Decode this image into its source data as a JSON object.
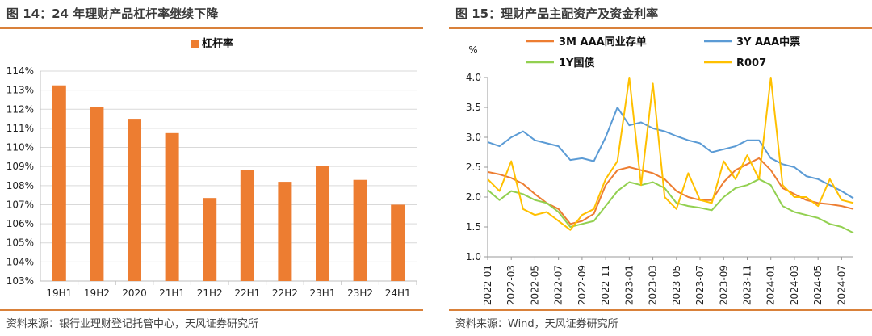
{
  "left": {
    "title": "图 14：24 年理财产品杠杆率继续下降",
    "source": "资料来源：银行业理财登记托管中心，天风证券研究所"
  },
  "right": {
    "title": "图 15：理财产品主配资产及资金利率",
    "source": "资料来源：Wind，天风证券研究所"
  },
  "chart_data": [
    {
      "type": "bar",
      "categories": [
        "19H1",
        "19H2",
        "2020",
        "21H1",
        "21H2",
        "22H1",
        "22H2",
        "23H1",
        "23H2",
        "24H1"
      ],
      "series": [
        {
          "name": "杠杆率",
          "values": [
            113.25,
            112.1,
            111.5,
            110.75,
            107.35,
            108.8,
            108.2,
            109.05,
            108.3,
            107.0
          ],
          "color": "#ed7d31"
        }
      ],
      "ylim": [
        103,
        114
      ],
      "yticks": [
        "103%",
        "104%",
        "105%",
        "106%",
        "107%",
        "108%",
        "109%",
        "110%",
        "111%",
        "112%",
        "113%",
        "114%"
      ],
      "legend_position": "top-center",
      "grid": true
    },
    {
      "type": "line",
      "ylabel": "%",
      "ylim": [
        1.0,
        4.0
      ],
      "yticks": [
        "1.0",
        "1.5",
        "2.0",
        "2.5",
        "3.0",
        "3.5",
        "4.0"
      ],
      "x_ticks": [
        "2022-01",
        "2022-03",
        "2022-05",
        "2022-07",
        "2022-09",
        "2022-11",
        "2023-01",
        "2023-03",
        "2023-05",
        "2023-07",
        "2023-09",
        "2023-11",
        "2024-01",
        "2024-03",
        "2024-05",
        "2024-07"
      ],
      "x_range": [
        "2022-01",
        "2024-08"
      ],
      "legend_position": "top",
      "grid": false,
      "series": [
        {
          "name": "3M AAA同业存单",
          "color": "#ed7d31",
          "x": [
            "2022-01",
            "2022-02",
            "2022-03",
            "2022-04",
            "2022-05",
            "2022-06",
            "2022-07",
            "2022-08",
            "2022-09",
            "2022-10",
            "2022-11",
            "2022-12",
            "2023-01",
            "2023-02",
            "2023-03",
            "2023-04",
            "2023-05",
            "2023-06",
            "2023-07",
            "2023-08",
            "2023-09",
            "2023-10",
            "2023-11",
            "2023-12",
            "2024-01",
            "2024-02",
            "2024-03",
            "2024-04",
            "2024-05",
            "2024-06",
            "2024-07",
            "2024-08"
          ],
          "values": [
            2.42,
            2.38,
            2.32,
            2.22,
            2.05,
            1.9,
            1.8,
            1.55,
            1.6,
            1.72,
            2.2,
            2.45,
            2.5,
            2.45,
            2.4,
            2.3,
            2.1,
            2.0,
            1.95,
            1.95,
            2.25,
            2.45,
            2.55,
            2.65,
            2.45,
            2.15,
            2.05,
            1.95,
            1.9,
            1.88,
            1.85,
            1.8
          ]
        },
        {
          "name": "3Y AAA中票",
          "color": "#5b9bd5",
          "x": [
            "2022-01",
            "2022-02",
            "2022-03",
            "2022-04",
            "2022-05",
            "2022-06",
            "2022-07",
            "2022-08",
            "2022-09",
            "2022-10",
            "2022-11",
            "2022-12",
            "2023-01",
            "2023-02",
            "2023-03",
            "2023-04",
            "2023-05",
            "2023-06",
            "2023-07",
            "2023-08",
            "2023-09",
            "2023-10",
            "2023-11",
            "2023-12",
            "2024-01",
            "2024-02",
            "2024-03",
            "2024-04",
            "2024-05",
            "2024-06",
            "2024-07",
            "2024-08"
          ],
          "values": [
            2.92,
            2.85,
            3.0,
            3.1,
            2.95,
            2.9,
            2.85,
            2.62,
            2.65,
            2.6,
            3.0,
            3.5,
            3.2,
            3.25,
            3.15,
            3.1,
            3.02,
            2.95,
            2.9,
            2.75,
            2.8,
            2.85,
            2.95,
            2.95,
            2.65,
            2.55,
            2.5,
            2.35,
            2.3,
            2.2,
            2.1,
            1.98
          ]
        },
        {
          "name": "1Y国债",
          "color": "#92d050",
          "x": [
            "2022-01",
            "2022-02",
            "2022-03",
            "2022-04",
            "2022-05",
            "2022-06",
            "2022-07",
            "2022-08",
            "2022-09",
            "2022-10",
            "2022-11",
            "2022-12",
            "2023-01",
            "2023-02",
            "2023-03",
            "2023-04",
            "2023-05",
            "2023-06",
            "2023-07",
            "2023-08",
            "2023-09",
            "2023-10",
            "2023-11",
            "2023-12",
            "2024-01",
            "2024-02",
            "2024-03",
            "2024-04",
            "2024-05",
            "2024-06",
            "2024-07",
            "2024-08"
          ],
          "values": [
            2.12,
            1.95,
            2.1,
            2.05,
            1.95,
            1.9,
            1.75,
            1.5,
            1.55,
            1.6,
            1.85,
            2.1,
            2.25,
            2.2,
            2.25,
            2.15,
            1.9,
            1.85,
            1.82,
            1.78,
            2.0,
            2.15,
            2.2,
            2.3,
            2.2,
            1.85,
            1.75,
            1.7,
            1.65,
            1.55,
            1.5,
            1.4
          ]
        },
        {
          "name": "R007",
          "color": "#ffc000",
          "x": [
            "2022-01",
            "2022-02",
            "2022-03",
            "2022-04",
            "2022-05",
            "2022-06",
            "2022-07",
            "2022-08",
            "2022-09",
            "2022-10",
            "2022-11",
            "2022-12",
            "2023-01",
            "2023-02",
            "2023-03",
            "2023-04",
            "2023-05",
            "2023-06",
            "2023-07",
            "2023-08",
            "2023-09",
            "2023-10",
            "2023-11",
            "2023-12",
            "2024-01",
            "2024-02",
            "2024-03",
            "2024-04",
            "2024-05",
            "2024-06",
            "2024-07",
            "2024-08"
          ],
          "values": [
            2.3,
            2.1,
            2.6,
            1.8,
            1.7,
            1.75,
            1.6,
            1.45,
            1.7,
            1.8,
            2.3,
            2.6,
            4.0,
            2.2,
            3.9,
            2.0,
            1.8,
            2.4,
            1.95,
            1.9,
            2.6,
            2.3,
            2.7,
            2.3,
            4.0,
            2.2,
            2.0,
            2.0,
            1.85,
            2.3,
            1.95,
            1.9
          ]
        }
      ]
    }
  ]
}
